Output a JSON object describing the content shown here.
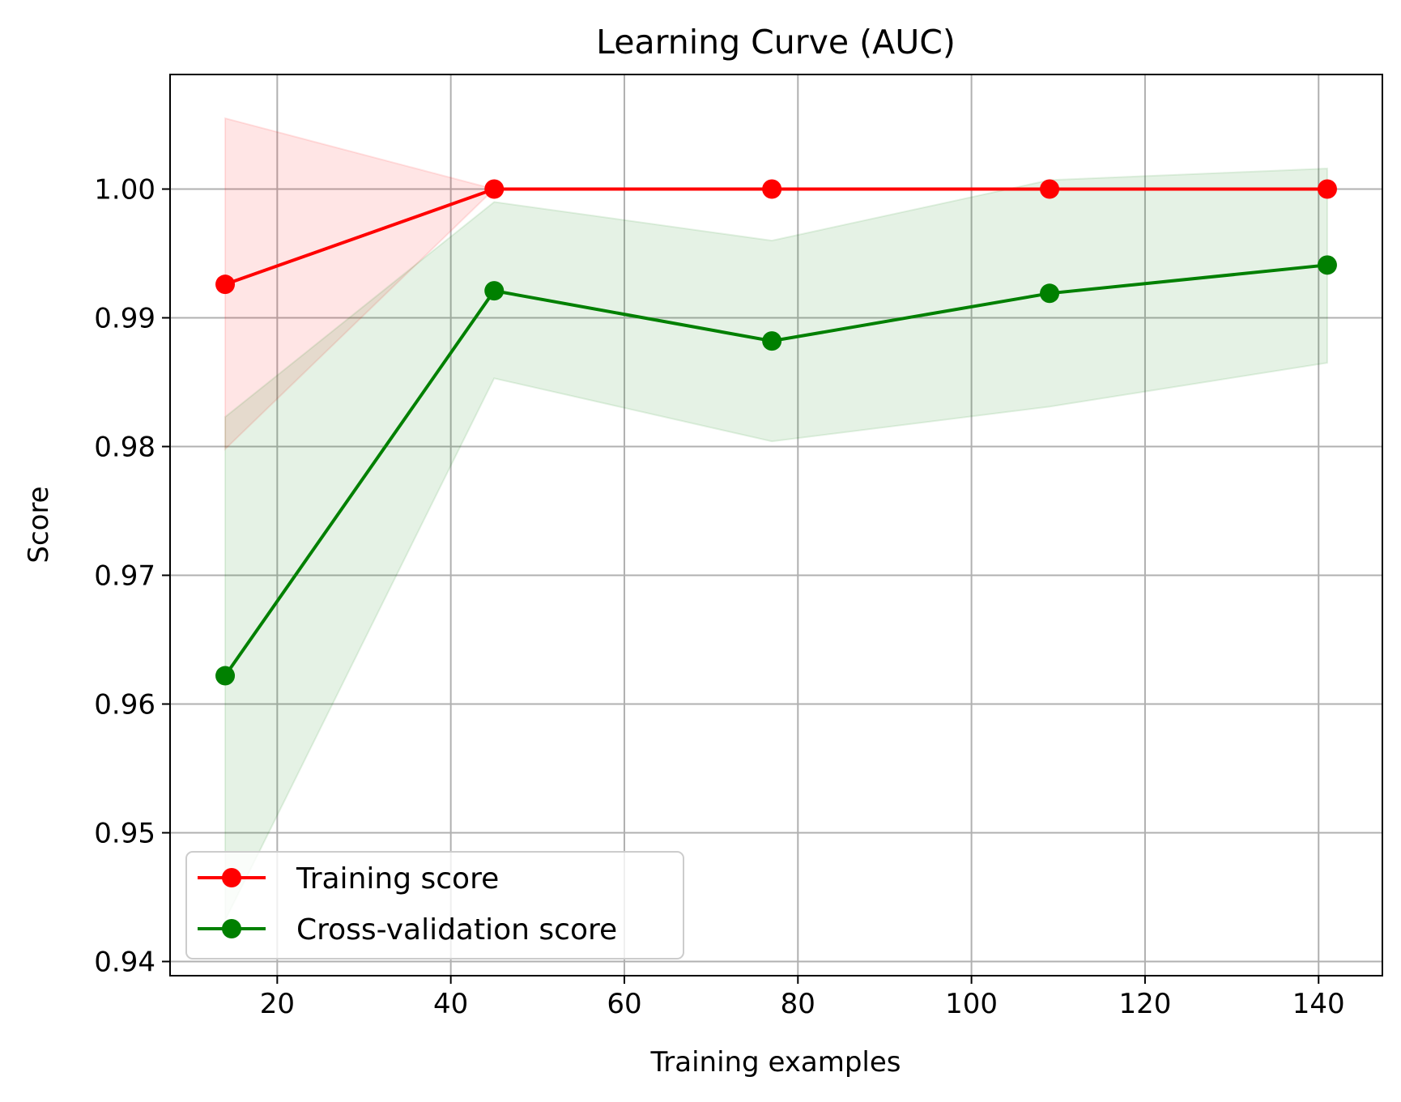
{
  "chart_data": {
    "type": "line",
    "title": "Learning Curve (AUC)",
    "xlabel": "Training examples",
    "ylabel": "Score",
    "x": [
      14,
      45,
      77,
      109,
      141
    ],
    "xlim": [
      7.65,
      147.35
    ],
    "ylim": [
      0.9389,
      1.0089
    ],
    "xticks": [
      20,
      40,
      60,
      80,
      100,
      120,
      140
    ],
    "xtick_labels": [
      "20",
      "40",
      "60",
      "80",
      "100",
      "120",
      "140"
    ],
    "yticks": [
      0.94,
      0.95,
      0.96,
      0.97,
      0.98,
      0.99,
      1.0
    ],
    "ytick_labels": [
      "0.94",
      "0.95",
      "0.96",
      "0.97",
      "0.98",
      "0.99",
      "1.00"
    ],
    "grid": true,
    "legend_position": "lower-left",
    "series": [
      {
        "name": "Training score",
        "color": "#ff0000",
        "values": [
          0.9926,
          1.0,
          1.0,
          1.0,
          1.0
        ],
        "band_lower": [
          0.9798,
          1.0,
          1.0,
          1.0,
          1.0
        ],
        "band_upper": [
          1.0055,
          1.0,
          1.0,
          1.0,
          1.0
        ]
      },
      {
        "name": "Cross-validation score",
        "color": "#008000",
        "values": [
          0.9622,
          0.9921,
          0.9882,
          0.9919,
          0.9941
        ],
        "band_lower": [
          0.9432,
          0.9853,
          0.9804,
          0.9831,
          0.9865
        ],
        "band_upper": [
          0.9823,
          0.999,
          0.996,
          1.0007,
          1.0016
        ]
      }
    ]
  }
}
